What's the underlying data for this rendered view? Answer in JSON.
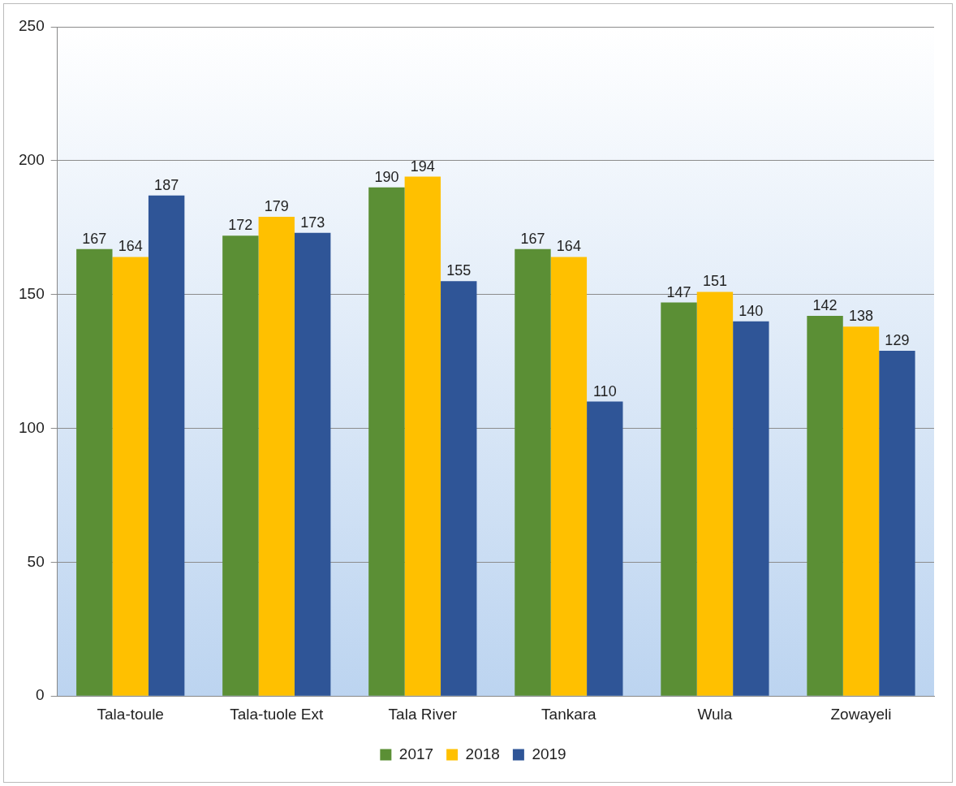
{
  "chart_data": {
    "type": "bar",
    "categories": [
      "Tala-toule",
      "Tala-tuole Ext",
      "Tala River",
      "Tankara",
      "Wula",
      "Zowayeli"
    ],
    "series": [
      {
        "name": "2017",
        "color": "#5b8f35",
        "values": [
          167,
          172,
          190,
          167,
          147,
          142
        ]
      },
      {
        "name": "2018",
        "color": "#ffc000",
        "values": [
          164,
          179,
          194,
          164,
          151,
          138
        ]
      },
      {
        "name": "2019",
        "color": "#2f5597",
        "values": [
          187,
          173,
          155,
          110,
          140,
          129
        ]
      }
    ],
    "ylim": [
      0,
      250
    ],
    "yticks": [
      0,
      50,
      100,
      150,
      200,
      250
    ],
    "grid": "y",
    "legend": "bottom",
    "data_labels": true
  }
}
